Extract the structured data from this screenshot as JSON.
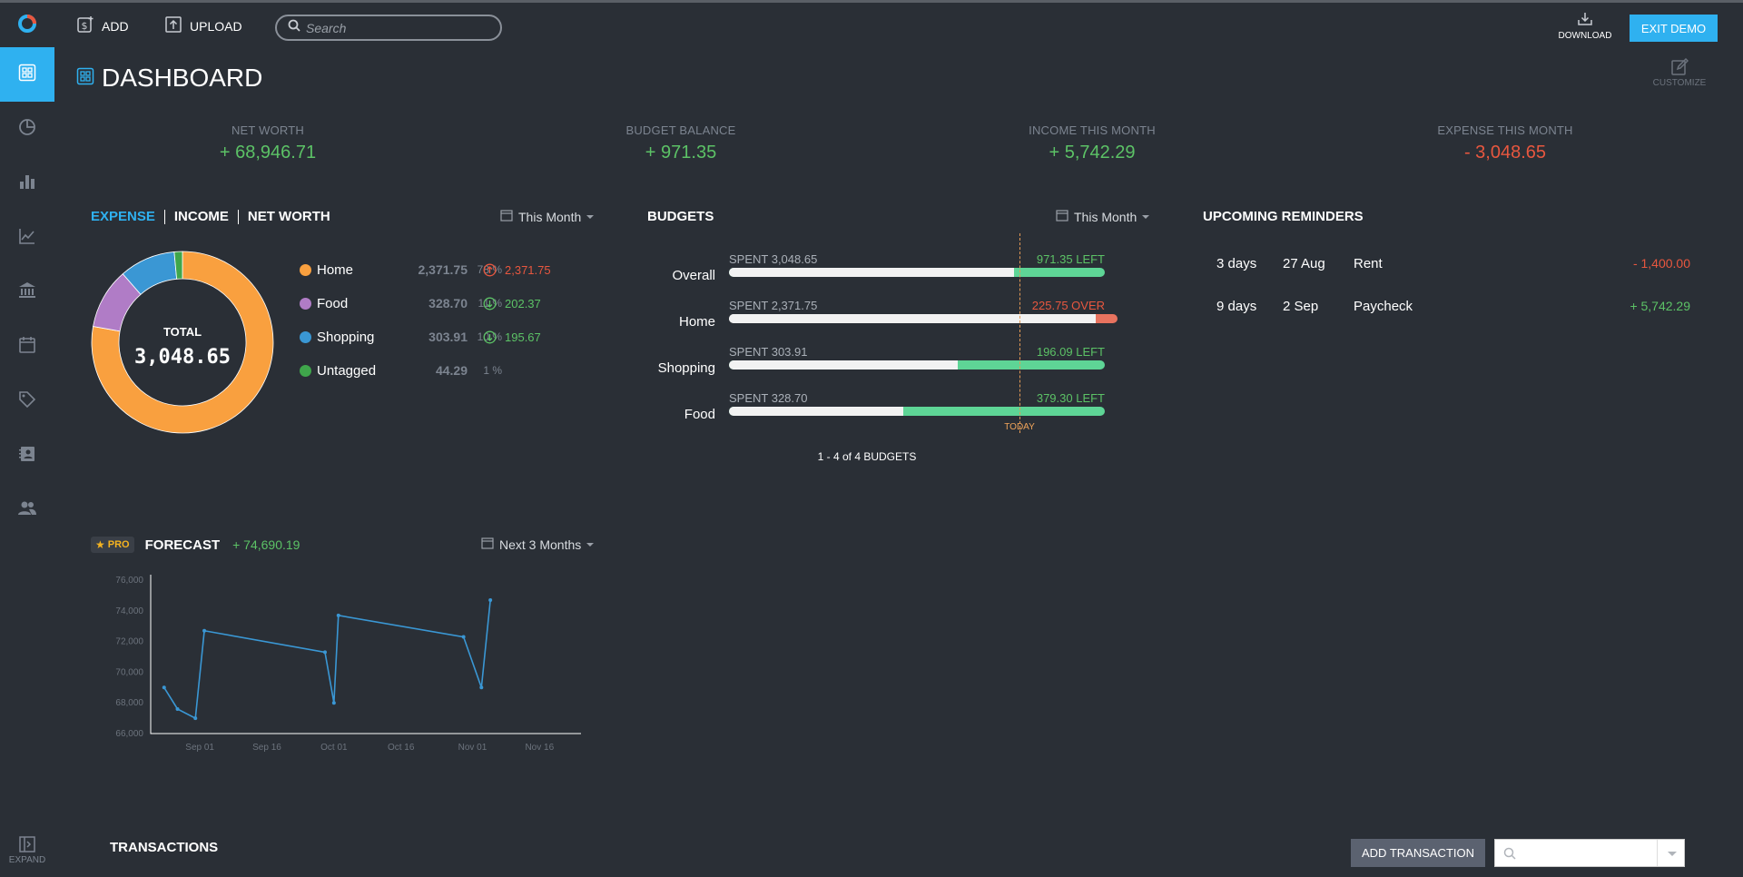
{
  "toolbar": {
    "add_label": "ADD",
    "upload_label": "UPLOAD",
    "search_placeholder": "Search",
    "download_label": "DOWNLOAD",
    "exit_label": "EXIT DEMO"
  },
  "page": {
    "title": "DASHBOARD",
    "customize_label": "CUSTOMIZE"
  },
  "sidebar": {
    "expand_label": "EXPAND"
  },
  "stats": [
    {
      "label": "NET WORTH",
      "value": "+ 68,946.71",
      "color": "#5cc266"
    },
    {
      "label": "BUDGET BALANCE",
      "value": "+ 971.35",
      "color": "#5cc266"
    },
    {
      "label": "INCOME THIS MONTH",
      "value": "+ 5,742.29",
      "color": "#5cc266"
    },
    {
      "label": "EXPENSE THIS MONTH",
      "value": "- 3,048.65",
      "color": "#e8573f"
    }
  ],
  "expense": {
    "tabs": [
      "EXPENSE",
      "INCOME",
      "NET WORTH"
    ],
    "period": "This Month",
    "total_label": "TOTAL",
    "total_value": "3,048.65",
    "categories": [
      {
        "name": "Home",
        "amount": "2,371.75",
        "value": 2371.75,
        "pct": "78 %",
        "remaining": "2,371.75",
        "direction": "up",
        "color": "#f9a03f",
        "rem_color": "#e8573f"
      },
      {
        "name": "Food",
        "amount": "328.70",
        "value": 328.7,
        "pct": "11 %",
        "remaining": "202.37",
        "direction": "down",
        "color": "#b07cc6",
        "rem_color": "#5cc266"
      },
      {
        "name": "Shopping",
        "amount": "303.91",
        "value": 303.91,
        "pct": "10 %",
        "remaining": "195.67",
        "direction": "down",
        "color": "#3a97d4",
        "rem_color": "#5cc266"
      },
      {
        "name": "Untagged",
        "amount": "44.29",
        "value": 44.29,
        "pct": "1 %",
        "remaining": "",
        "direction": "",
        "color": "#3fa64b",
        "rem_color": "#5cc266"
      }
    ]
  },
  "budgets": {
    "title": "BUDGETS",
    "period": "This Month",
    "today_label": "TODAY",
    "pagination": "1 - 4 of 4 BUDGETS",
    "items": [
      {
        "name": "Overall",
        "spent": "SPENT 3,048.65",
        "left": "971.35 LEFT",
        "left_color": "#5cc266",
        "fraction": 0.758,
        "over": false
      },
      {
        "name": "Home",
        "spent": "SPENT 2,371.75",
        "left": "225.75 OVER",
        "left_color": "#e8573f",
        "fraction": 1.0,
        "over": true
      },
      {
        "name": "Shopping",
        "spent": "SPENT 303.91",
        "left": "196.09 LEFT",
        "left_color": "#5cc266",
        "fraction": 0.608,
        "over": false
      },
      {
        "name": "Food",
        "spent": "SPENT 328.70",
        "left": "379.30 LEFT",
        "left_color": "#5cc266",
        "fraction": 0.464,
        "over": false
      }
    ]
  },
  "reminders": {
    "title": "UPCOMING REMINDERS",
    "items": [
      {
        "days": "3 days",
        "date": "27 Aug",
        "name": "Rent",
        "amount": "- 1,400.00",
        "color": "#e8573f"
      },
      {
        "days": "9 days",
        "date": "2 Sep",
        "name": "Paycheck",
        "amount": "+ 5,742.29",
        "color": "#5cc266"
      }
    ]
  },
  "forecast": {
    "badge": "PRO",
    "title": "FORECAST",
    "value": "+ 74,690.19",
    "period": "Next 3 Months"
  },
  "chart_data": {
    "type": "line",
    "x_ticks": [
      "Sep 01",
      "Sep 16",
      "Oct 01",
      "Oct 16",
      "Nov 01",
      "Nov 16"
    ],
    "y_ticks": [
      "76,000",
      "74,000",
      "72,000",
      "70,000",
      "68,000",
      "66,000"
    ],
    "ylim": [
      66000,
      76000
    ],
    "xlim_days": [
      -11,
      80
    ],
    "points": [
      {
        "day": -8,
        "value": 69000
      },
      {
        "day": -5,
        "value": 67600
      },
      {
        "day": -1,
        "value": 67000
      },
      {
        "day": 1,
        "value": 72700
      },
      {
        "day": 28,
        "value": 71300
      },
      {
        "day": 30,
        "value": 68000
      },
      {
        "day": 31,
        "value": 73700
      },
      {
        "day": 59,
        "value": 72300
      },
      {
        "day": 63,
        "value": 69000
      },
      {
        "day": 65,
        "value": 74700
      }
    ],
    "line_color": "#3a97d4"
  },
  "transactions": {
    "title": "TRANSACTIONS",
    "add_label": "ADD TRANSACTION"
  }
}
